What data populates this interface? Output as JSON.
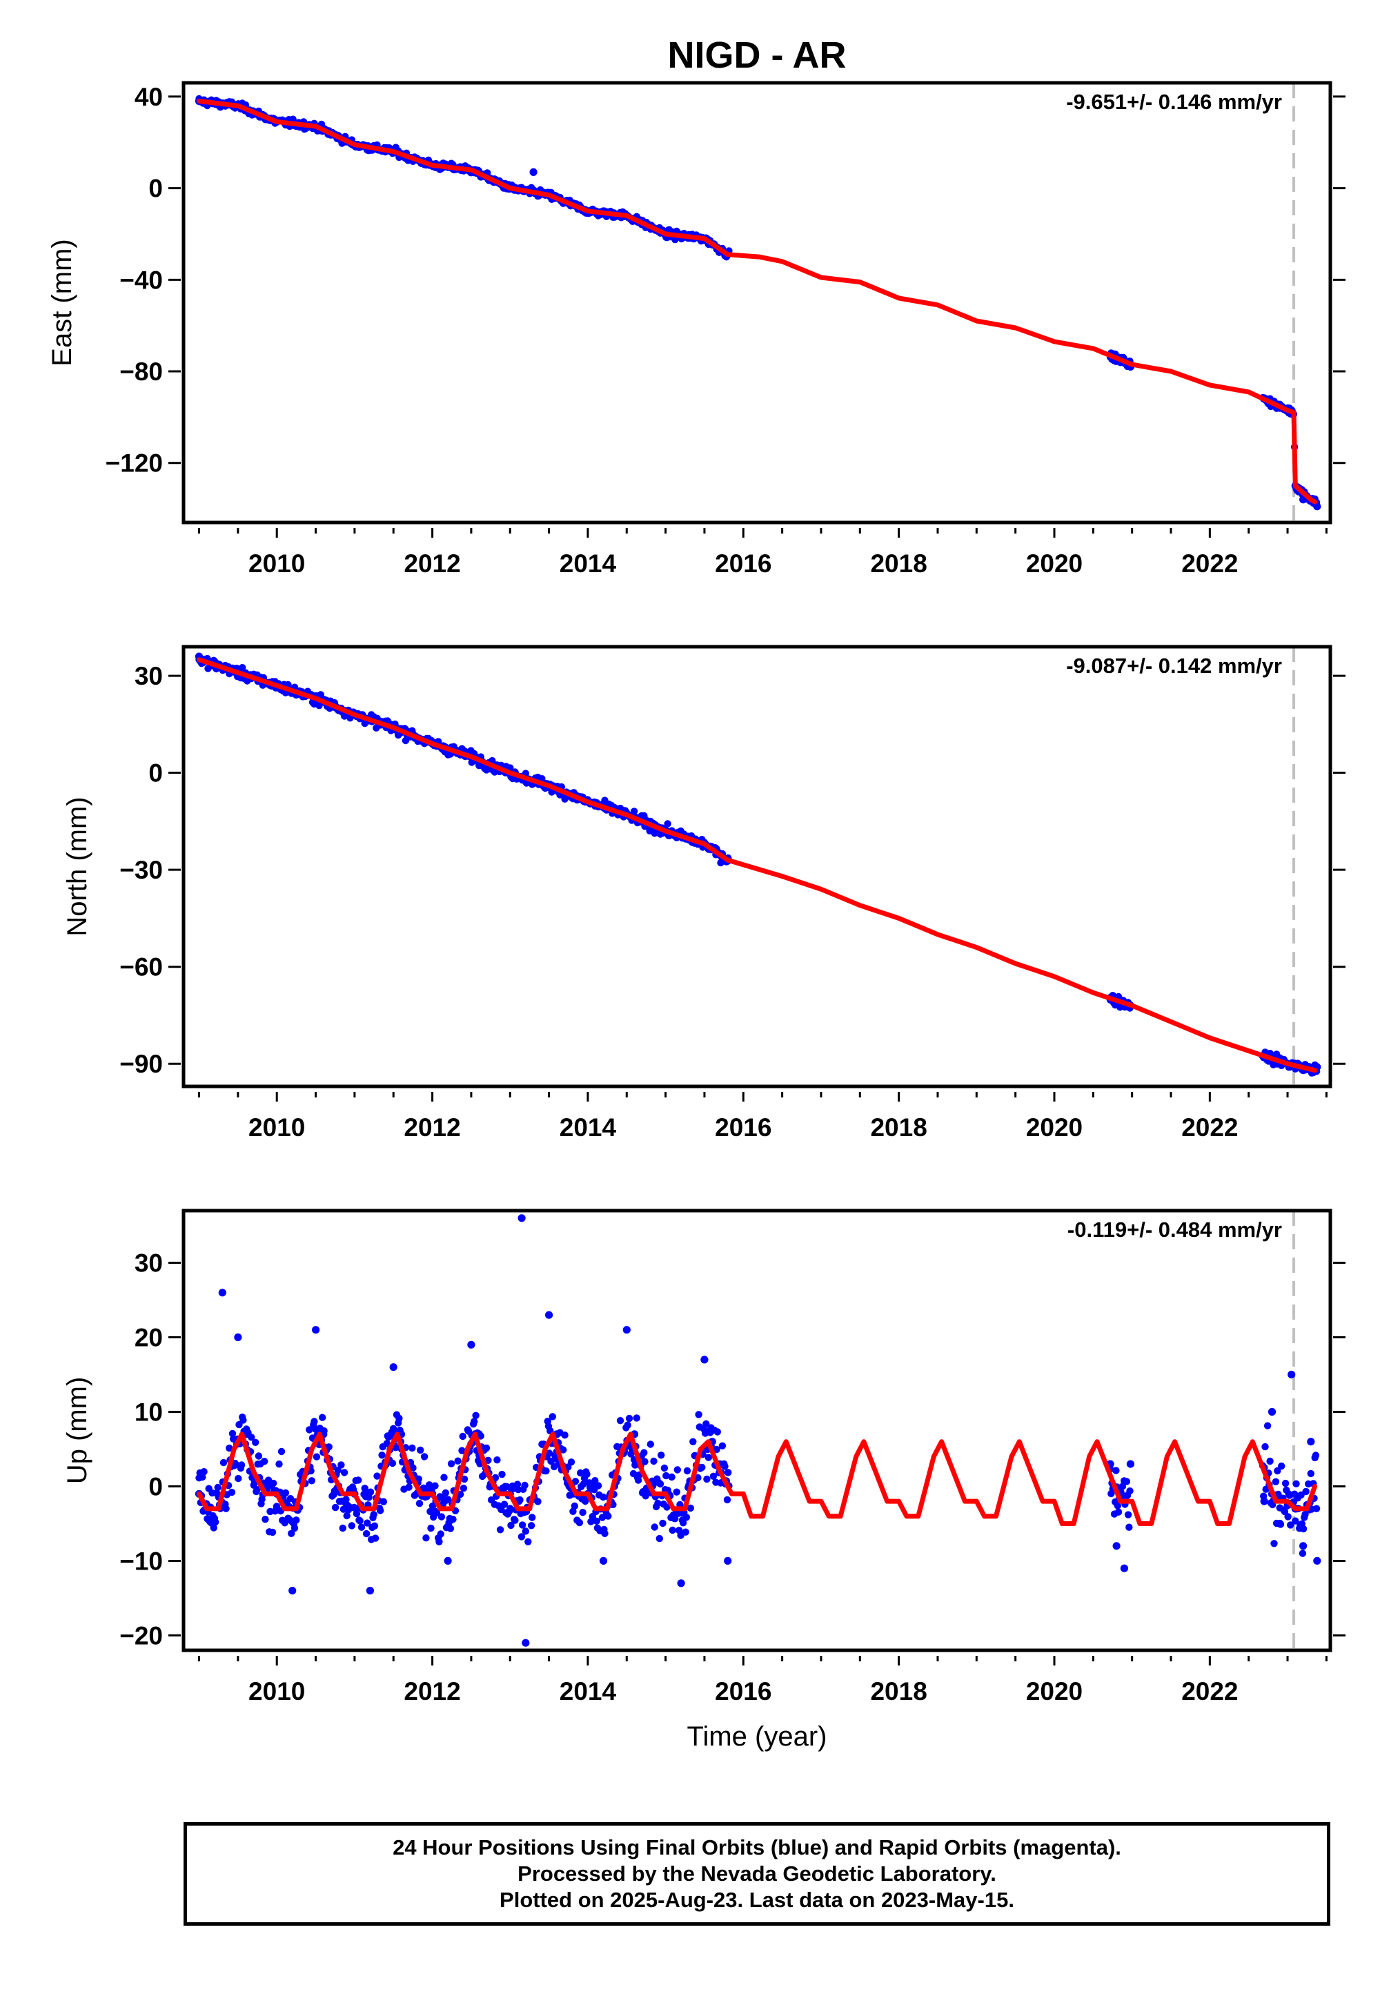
{
  "figure": {
    "title": "NIGD - AR",
    "footer_lines": [
      "24 Hour Positions Using Final Orbits (blue) and Rapid Orbits (magenta).",
      "Processed by the Nevada Geodetic Laboratory.",
      "Plotted on 2025-Aug-23. Last data on 2023-May-15."
    ],
    "colors": {
      "data_points": "#0000ff",
      "model_curve": "#ff0000",
      "event_line": "#c0c0c0",
      "frame": "#000000"
    }
  },
  "chart_data": [
    {
      "type": "scatter",
      "panel": "east",
      "ylabel": "East (mm)",
      "xlabel": "",
      "rate_label": "-9.651+/- 0.146 mm/yr",
      "xlim": [
        2008.8,
        2023.55
      ],
      "ylim": [
        -146,
        46
      ],
      "xticks": [
        2010,
        2012,
        2014,
        2016,
        2018,
        2020,
        2022
      ],
      "yticks": [
        40,
        0,
        -40,
        -80,
        -120
      ],
      "ytick_labels": [
        "40",
        "0",
        "−40",
        "−80",
        "−120"
      ],
      "offset_epoch": 2023.08,
      "offset_size": -30,
      "data_segments": [
        [
          2009.0,
          2015.82
        ],
        [
          2020.72,
          2020.98
        ],
        [
          2022.68,
          2023.38
        ]
      ],
      "series": [
        {
          "name": "model",
          "style": "line",
          "x": [
            2009.0,
            2009.5,
            2010.0,
            2010.5,
            2011.0,
            2011.5,
            2012.0,
            2012.5,
            2013.0,
            2013.5,
            2014.0,
            2014.5,
            2015.0,
            2015.5,
            2015.8,
            2016.2,
            2016.5,
            2017.0,
            2017.5,
            2018.0,
            2018.5,
            2019.0,
            2019.5,
            2020.0,
            2020.5,
            2021.0,
            2021.5,
            2022.0,
            2022.5,
            2023.0,
            2023.08,
            2023.1,
            2023.3,
            2023.35
          ],
          "values": [
            38,
            36,
            29,
            27,
            19,
            16,
            10,
            8,
            0,
            -3,
            -10,
            -12,
            -20,
            -22,
            -29,
            -30,
            -32,
            -39,
            -41,
            -48,
            -51,
            -58,
            -61,
            -67,
            -70,
            -77,
            -80,
            -86,
            -89,
            -97,
            -98,
            -130,
            -136,
            -137
          ]
        },
        {
          "name": "daily positions",
          "style": "points",
          "x": [
            2009.0,
            2009.5,
            2010.0,
            2010.5,
            2011.0,
            2011.5,
            2012.0,
            2012.5,
            2013.0,
            2013.3,
            2013.5,
            2014.0,
            2014.5,
            2015.0,
            2015.5,
            2015.8,
            2020.72,
            2020.85,
            2020.98,
            2022.7,
            2022.9,
            2023.05,
            2023.1,
            2023.2,
            2023.38
          ],
          "values": [
            38,
            36,
            29,
            27,
            19,
            16,
            10,
            8,
            0,
            7,
            -3,
            -10,
            -12,
            -20,
            -22,
            -29,
            -73,
            -76,
            -78,
            -92,
            -96,
            -97,
            -130,
            -136,
            -139
          ]
        }
      ]
    },
    {
      "type": "scatter",
      "panel": "north",
      "ylabel": "North (mm)",
      "xlabel": "",
      "rate_label": "-9.087+/- 0.142 mm/yr",
      "xlim": [
        2008.8,
        2023.55
      ],
      "ylim": [
        -97,
        39
      ],
      "xticks": [
        2010,
        2012,
        2014,
        2016,
        2018,
        2020,
        2022
      ],
      "yticks": [
        30,
        0,
        -30,
        -60,
        -90
      ],
      "ytick_labels": [
        "30",
        "0",
        "−30",
        "−60",
        "−90"
      ],
      "offset_epoch": 2023.08,
      "offset_size": 0,
      "data_segments": [
        [
          2009.0,
          2015.82
        ],
        [
          2020.72,
          2020.98
        ],
        [
          2022.68,
          2023.38
        ]
      ],
      "series": [
        {
          "name": "model",
          "style": "line",
          "x": [
            2009.0,
            2009.5,
            2010.0,
            2010.5,
            2011.0,
            2011.5,
            2012.0,
            2012.5,
            2013.0,
            2013.5,
            2014.0,
            2014.5,
            2015.0,
            2015.5,
            2015.8,
            2016.5,
            2017.0,
            2017.5,
            2018.0,
            2018.5,
            2019.0,
            2019.5,
            2020.0,
            2020.5,
            2021.0,
            2021.5,
            2022.0,
            2022.5,
            2023.0,
            2023.35
          ],
          "values": [
            35,
            31,
            27,
            23,
            18,
            14,
            9,
            5,
            0,
            -4,
            -9,
            -13,
            -18,
            -22,
            -27,
            -32,
            -36,
            -41,
            -45,
            -50,
            -54,
            -59,
            -63,
            -68,
            -72,
            -77,
            -82,
            -86,
            -90,
            -92
          ]
        },
        {
          "name": "daily positions",
          "style": "points",
          "x": [
            2009.0,
            2009.5,
            2010.0,
            2010.5,
            2011.0,
            2011.5,
            2012.0,
            2012.5,
            2013.0,
            2013.5,
            2014.0,
            2014.5,
            2015.0,
            2015.5,
            2015.8,
            2020.72,
            2020.85,
            2020.98,
            2022.7,
            2022.9,
            2023.1,
            2023.2,
            2023.38
          ],
          "values": [
            36,
            31,
            27,
            23,
            18,
            14,
            9,
            5,
            0,
            -4,
            -9,
            -13,
            -18,
            -22,
            -27,
            -70,
            -71,
            -72,
            -88,
            -90,
            -90,
            -92,
            -91
          ]
        }
      ]
    },
    {
      "type": "scatter",
      "panel": "up",
      "ylabel": "Up (mm)",
      "xlabel": "Time (year)",
      "rate_label": "-0.119+/- 0.484 mm/yr",
      "xlim": [
        2008.8,
        2023.55
      ],
      "ylim": [
        -22,
        37
      ],
      "xticks": [
        2010,
        2012,
        2014,
        2016,
        2018,
        2020,
        2022
      ],
      "yticks": [
        30,
        20,
        10,
        0,
        -10,
        -20
      ],
      "ytick_labels": [
        "30",
        "20",
        "10",
        "0",
        "−10",
        "−20"
      ],
      "offset_epoch": 2023.08,
      "offset_size": 0,
      "data_segments": [
        [
          2009.0,
          2015.82
        ],
        [
          2020.72,
          2020.98
        ],
        [
          2022.68,
          2023.38
        ]
      ],
      "series": [
        {
          "name": "model",
          "style": "line",
          "x": [
            2009.0,
            2009.1,
            2009.25,
            2009.45,
            2009.55,
            2009.7,
            2009.85,
            2010.0,
            2010.1,
            2010.25,
            2010.45,
            2010.55,
            2010.7,
            2010.85,
            2011.0,
            2011.1,
            2011.25,
            2011.45,
            2011.55,
            2011.7,
            2011.85,
            2012.0,
            2012.1,
            2012.25,
            2012.45,
            2012.55,
            2012.7,
            2012.85,
            2013.0,
            2013.1,
            2013.25,
            2013.45,
            2013.55,
            2013.7,
            2013.85,
            2014.0,
            2014.1,
            2014.25,
            2014.45,
            2014.55,
            2014.7,
            2014.85,
            2015.0,
            2015.1,
            2015.25,
            2015.45,
            2015.55,
            2015.7,
            2015.85,
            2016.0,
            2016.1,
            2016.25,
            2016.45,
            2016.55,
            2016.7,
            2016.85,
            2017.0,
            2017.1,
            2017.25,
            2017.45,
            2017.55,
            2017.7,
            2017.85,
            2018.0,
            2018.1,
            2018.25,
            2018.45,
            2018.55,
            2018.7,
            2018.85,
            2019.0,
            2019.1,
            2019.25,
            2019.45,
            2019.55,
            2019.7,
            2019.85,
            2020.0,
            2020.1,
            2020.25,
            2020.45,
            2020.55,
            2020.7,
            2020.85,
            2021.0,
            2021.1,
            2021.25,
            2021.45,
            2021.55,
            2021.7,
            2021.85,
            2022.0,
            2022.1,
            2022.25,
            2022.45,
            2022.55,
            2022.7,
            2022.85,
            2023.0,
            2023.1,
            2023.25,
            2023.35
          ],
          "values": [
            -1,
            -3,
            -3,
            5,
            7,
            2,
            -1,
            -1,
            -3,
            -3,
            5,
            7,
            2,
            -1,
            -1,
            -3,
            -3,
            5,
            7,
            2,
            -1,
            -1,
            -3,
            -3,
            5,
            7,
            2,
            -1,
            -1,
            -3,
            -3,
            5,
            7,
            2,
            -1,
            -1,
            -3,
            -3,
            5,
            7,
            2,
            -1,
            -1,
            -3,
            -3,
            5,
            6,
            2,
            -1,
            -1,
            -4,
            -4,
            4,
            6,
            2,
            -2,
            -2,
            -4,
            -4,
            4,
            6,
            2,
            -2,
            -2,
            -4,
            -4,
            4,
            6,
            2,
            -2,
            -2,
            -4,
            -4,
            4,
            6,
            2,
            -2,
            -2,
            -5,
            -5,
            4,
            6,
            2,
            -2,
            -2,
            -5,
            -5,
            4,
            6,
            2,
            -2,
            -2,
            -5,
            -5,
            4,
            6,
            2,
            -2,
            -2,
            -3,
            -3,
            0
          ]
        },
        {
          "name": "daily positions",
          "style": "points",
          "x": [
            2009.0,
            2009.3,
            2009.5,
            2009.6,
            2010.0,
            2010.2,
            2010.5,
            2010.6,
            2011.0,
            2011.2,
            2011.5,
            2011.6,
            2012.0,
            2012.2,
            2012.5,
            2012.6,
            2013.0,
            2013.15,
            2013.2,
            2013.5,
            2013.6,
            2014.0,
            2014.2,
            2014.5,
            2014.6,
            2015.0,
            2015.2,
            2015.5,
            2015.6,
            2015.8,
            2020.72,
            2020.8,
            2020.9,
            2020.98,
            2022.7,
            2022.8,
            2022.9,
            2023.05,
            2023.1,
            2023.2,
            2023.3,
            2023.38
          ],
          "values": [
            -1,
            26,
            20,
            7,
            -1,
            -14,
            21,
            7,
            -1,
            -14,
            16,
            7,
            -1,
            -10,
            19,
            7,
            -1,
            36,
            -21,
            23,
            7,
            -1,
            -10,
            21,
            7,
            -1,
            -13,
            17,
            6,
            -10,
            3,
            -8,
            -11,
            3,
            -2,
            10,
            -5,
            15,
            -3,
            -8,
            6,
            -10
          ]
        }
      ]
    }
  ]
}
